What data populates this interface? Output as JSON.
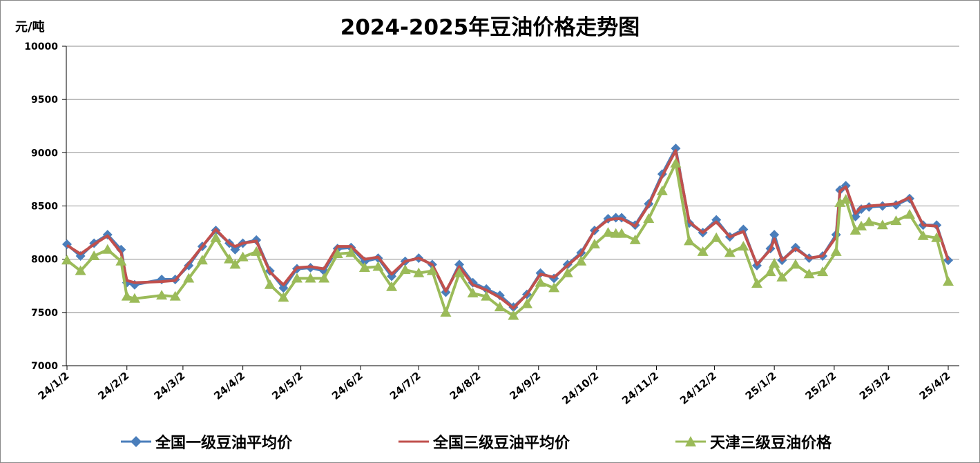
{
  "chart_data": {
    "type": "line",
    "title": "2024-2025年豆油价格走势图",
    "ylabel": "元/吨",
    "ylim": [
      7000,
      10000
    ],
    "yticks": [
      7000,
      7500,
      8000,
      8500,
      9000,
      9500,
      10000
    ],
    "xticks": [
      "24/1/2",
      "24/2/2",
      "24/3/2",
      "24/4/2",
      "24/5/2",
      "24/6/2",
      "24/7/2",
      "24/8/2",
      "24/9/2",
      "24/10/2",
      "24/11/2",
      "24/12/2",
      "25/1/2",
      "25/2/2",
      "25/3/2",
      "25/4/2"
    ],
    "grid": true,
    "legend_position": "bottom",
    "series": [
      {
        "name": "全国一级豆油平均价",
        "color": "#4a7ebb",
        "marker": "diamond",
        "points": [
          [
            "2024-01-02",
            8140
          ],
          [
            "2024-01-09",
            8030
          ],
          [
            "2024-01-16",
            8150
          ],
          [
            "2024-01-23",
            8230
          ],
          [
            "2024-01-30",
            8090
          ],
          [
            "2024-02-02",
            7780
          ],
          [
            "2024-02-06",
            7760
          ],
          [
            "2024-02-20",
            7810
          ],
          [
            "2024-02-27",
            7810
          ],
          [
            "2024-03-05",
            7940
          ],
          [
            "2024-03-12",
            8120
          ],
          [
            "2024-03-19",
            8270
          ],
          [
            "2024-03-26",
            8150
          ],
          [
            "2024-03-29",
            8090
          ],
          [
            "2024-04-02",
            8150
          ],
          [
            "2024-04-09",
            8180
          ],
          [
            "2024-04-16",
            7890
          ],
          [
            "2024-04-23",
            7730
          ],
          [
            "2024-04-30",
            7910
          ],
          [
            "2024-05-07",
            7920
          ],
          [
            "2024-05-14",
            7890
          ],
          [
            "2024-05-21",
            8100
          ],
          [
            "2024-05-28",
            8110
          ],
          [
            "2024-06-04",
            7980
          ],
          [
            "2024-06-11",
            8010
          ],
          [
            "2024-06-18",
            7840
          ],
          [
            "2024-06-25",
            7980
          ],
          [
            "2024-07-02",
            8010
          ],
          [
            "2024-07-09",
            7950
          ],
          [
            "2024-07-16",
            7690
          ],
          [
            "2024-07-23",
            7950
          ],
          [
            "2024-07-30",
            7780
          ],
          [
            "2024-08-06",
            7720
          ],
          [
            "2024-08-13",
            7660
          ],
          [
            "2024-08-20",
            7550
          ],
          [
            "2024-08-27",
            7670
          ],
          [
            "2024-09-03",
            7870
          ],
          [
            "2024-09-10",
            7820
          ],
          [
            "2024-09-17",
            7950
          ],
          [
            "2024-09-24",
            8060
          ],
          [
            "2024-10-01",
            8270
          ],
          [
            "2024-10-08",
            8380
          ],
          [
            "2024-10-12",
            8390
          ],
          [
            "2024-10-15",
            8390
          ],
          [
            "2024-10-22",
            8320
          ],
          [
            "2024-10-29",
            8520
          ],
          [
            "2024-11-05",
            8800
          ],
          [
            "2024-11-12",
            9040
          ],
          [
            "2024-11-19",
            8340
          ],
          [
            "2024-11-26",
            8250
          ],
          [
            "2024-12-03",
            8370
          ],
          [
            "2024-12-10",
            8210
          ],
          [
            "2024-12-17",
            8280
          ],
          [
            "2024-12-24",
            7940
          ],
          [
            "2024-12-31",
            8100
          ],
          [
            "2025-01-02",
            8230
          ],
          [
            "2025-01-06",
            7990
          ],
          [
            "2025-01-13",
            8110
          ],
          [
            "2025-01-20",
            8010
          ],
          [
            "2025-01-27",
            8030
          ],
          [
            "2025-02-03",
            8230
          ],
          [
            "2025-02-05",
            8650
          ],
          [
            "2025-02-08",
            8690
          ],
          [
            "2025-02-13",
            8400
          ],
          [
            "2025-02-16",
            8470
          ],
          [
            "2025-02-20",
            8490
          ],
          [
            "2025-02-27",
            8500
          ],
          [
            "2025-03-06",
            8510
          ],
          [
            "2025-03-13",
            8570
          ],
          [
            "2025-03-20",
            8320
          ],
          [
            "2025-03-27",
            8320
          ],
          [
            "2025-04-02",
            7990
          ]
        ]
      },
      {
        "name": "全国三级豆油平均价",
        "color": "#c0504d",
        "marker": "none",
        "points": [
          [
            "2024-01-02",
            8130
          ],
          [
            "2024-01-09",
            8050
          ],
          [
            "2024-01-16",
            8140
          ],
          [
            "2024-01-23",
            8220
          ],
          [
            "2024-01-30",
            8060
          ],
          [
            "2024-02-02",
            7800
          ],
          [
            "2024-02-06",
            7780
          ],
          [
            "2024-02-20",
            7790
          ],
          [
            "2024-02-27",
            7800
          ],
          [
            "2024-03-05",
            7960
          ],
          [
            "2024-03-12",
            8120
          ],
          [
            "2024-03-19",
            8280
          ],
          [
            "2024-03-26",
            8150
          ],
          [
            "2024-03-29",
            8120
          ],
          [
            "2024-04-02",
            8150
          ],
          [
            "2024-04-09",
            8170
          ],
          [
            "2024-04-16",
            7880
          ],
          [
            "2024-04-23",
            7760
          ],
          [
            "2024-04-30",
            7920
          ],
          [
            "2024-05-07",
            7930
          ],
          [
            "2024-05-14",
            7910
          ],
          [
            "2024-05-21",
            8120
          ],
          [
            "2024-05-28",
            8120
          ],
          [
            "2024-06-04",
            8000
          ],
          [
            "2024-06-11",
            8020
          ],
          [
            "2024-06-18",
            7860
          ],
          [
            "2024-06-25",
            7980
          ],
          [
            "2024-07-02",
            8010
          ],
          [
            "2024-07-09",
            7950
          ],
          [
            "2024-07-16",
            7700
          ],
          [
            "2024-07-23",
            7930
          ],
          [
            "2024-07-30",
            7760
          ],
          [
            "2024-08-06",
            7710
          ],
          [
            "2024-08-13",
            7640
          ],
          [
            "2024-08-20",
            7540
          ],
          [
            "2024-08-27",
            7670
          ],
          [
            "2024-09-03",
            7860
          ],
          [
            "2024-09-10",
            7830
          ],
          [
            "2024-09-17",
            7940
          ],
          [
            "2024-09-24",
            8050
          ],
          [
            "2024-10-01",
            8270
          ],
          [
            "2024-10-08",
            8370
          ],
          [
            "2024-10-12",
            8380
          ],
          [
            "2024-10-15",
            8380
          ],
          [
            "2024-10-22",
            8310
          ],
          [
            "2024-10-29",
            8510
          ],
          [
            "2024-11-05",
            8780
          ],
          [
            "2024-11-12",
            9020
          ],
          [
            "2024-11-19",
            8350
          ],
          [
            "2024-11-26",
            8250
          ],
          [
            "2024-12-03",
            8350
          ],
          [
            "2024-12-10",
            8210
          ],
          [
            "2024-12-17",
            8260
          ],
          [
            "2024-12-24",
            7950
          ],
          [
            "2024-12-31",
            8090
          ],
          [
            "2025-01-02",
            8190
          ],
          [
            "2025-01-06",
            7990
          ],
          [
            "2025-01-13",
            8100
          ],
          [
            "2025-01-20",
            8010
          ],
          [
            "2025-01-27",
            8030
          ],
          [
            "2025-02-03",
            8210
          ],
          [
            "2025-02-05",
            8640
          ],
          [
            "2025-02-08",
            8680
          ],
          [
            "2025-02-13",
            8430
          ],
          [
            "2025-02-16",
            8490
          ],
          [
            "2025-02-20",
            8500
          ],
          [
            "2025-02-27",
            8510
          ],
          [
            "2025-03-06",
            8520
          ],
          [
            "2025-03-13",
            8580
          ],
          [
            "2025-03-20",
            8320
          ],
          [
            "2025-03-27",
            8310
          ],
          [
            "2025-04-02",
            7990
          ]
        ]
      },
      {
        "name": "天津三级豆油价格",
        "color": "#9bbb59",
        "marker": "triangle",
        "points": [
          [
            "2024-01-02",
            7990
          ],
          [
            "2024-01-09",
            7890
          ],
          [
            "2024-01-16",
            8030
          ],
          [
            "2024-01-23",
            8090
          ],
          [
            "2024-01-30",
            7980
          ],
          [
            "2024-02-02",
            7650
          ],
          [
            "2024-02-06",
            7630
          ],
          [
            "2024-02-20",
            7660
          ],
          [
            "2024-02-27",
            7650
          ],
          [
            "2024-03-05",
            7820
          ],
          [
            "2024-03-12",
            7990
          ],
          [
            "2024-03-19",
            8200
          ],
          [
            "2024-03-26",
            8000
          ],
          [
            "2024-03-29",
            7950
          ],
          [
            "2024-04-02",
            8020
          ],
          [
            "2024-04-09",
            8070
          ],
          [
            "2024-04-16",
            7760
          ],
          [
            "2024-04-23",
            7640
          ],
          [
            "2024-04-30",
            7820
          ],
          [
            "2024-05-07",
            7820
          ],
          [
            "2024-05-14",
            7820
          ],
          [
            "2024-05-21",
            8050
          ],
          [
            "2024-05-28",
            8060
          ],
          [
            "2024-06-04",
            7920
          ],
          [
            "2024-06-11",
            7930
          ],
          [
            "2024-06-18",
            7740
          ],
          [
            "2024-06-25",
            7900
          ],
          [
            "2024-07-02",
            7870
          ],
          [
            "2024-07-09",
            7890
          ],
          [
            "2024-07-16",
            7500
          ],
          [
            "2024-07-23",
            7870
          ],
          [
            "2024-07-30",
            7680
          ],
          [
            "2024-08-06",
            7650
          ],
          [
            "2024-08-13",
            7550
          ],
          [
            "2024-08-20",
            7470
          ],
          [
            "2024-08-27",
            7580
          ],
          [
            "2024-09-03",
            7780
          ],
          [
            "2024-09-10",
            7730
          ],
          [
            "2024-09-17",
            7870
          ],
          [
            "2024-09-24",
            7980
          ],
          [
            "2024-10-01",
            8140
          ],
          [
            "2024-10-08",
            8250
          ],
          [
            "2024-10-12",
            8240
          ],
          [
            "2024-10-15",
            8240
          ],
          [
            "2024-10-22",
            8180
          ],
          [
            "2024-10-29",
            8380
          ],
          [
            "2024-11-05",
            8640
          ],
          [
            "2024-11-12",
            8900
          ],
          [
            "2024-11-19",
            8170
          ],
          [
            "2024-11-26",
            8070
          ],
          [
            "2024-12-03",
            8200
          ],
          [
            "2024-12-10",
            8060
          ],
          [
            "2024-12-17",
            8120
          ],
          [
            "2024-12-24",
            7770
          ],
          [
            "2024-12-31",
            7880
          ],
          [
            "2025-01-02",
            7960
          ],
          [
            "2025-01-06",
            7830
          ],
          [
            "2025-01-13",
            7950
          ],
          [
            "2025-01-20",
            7860
          ],
          [
            "2025-01-27",
            7880
          ],
          [
            "2025-02-03",
            8070
          ],
          [
            "2025-02-05",
            8530
          ],
          [
            "2025-02-08",
            8560
          ],
          [
            "2025-02-13",
            8270
          ],
          [
            "2025-02-16",
            8310
          ],
          [
            "2025-02-20",
            8350
          ],
          [
            "2025-02-27",
            8320
          ],
          [
            "2025-03-06",
            8360
          ],
          [
            "2025-03-13",
            8420
          ],
          [
            "2025-03-20",
            8220
          ],
          [
            "2025-03-27",
            8200
          ],
          [
            "2025-04-02",
            7790
          ]
        ]
      }
    ]
  }
}
